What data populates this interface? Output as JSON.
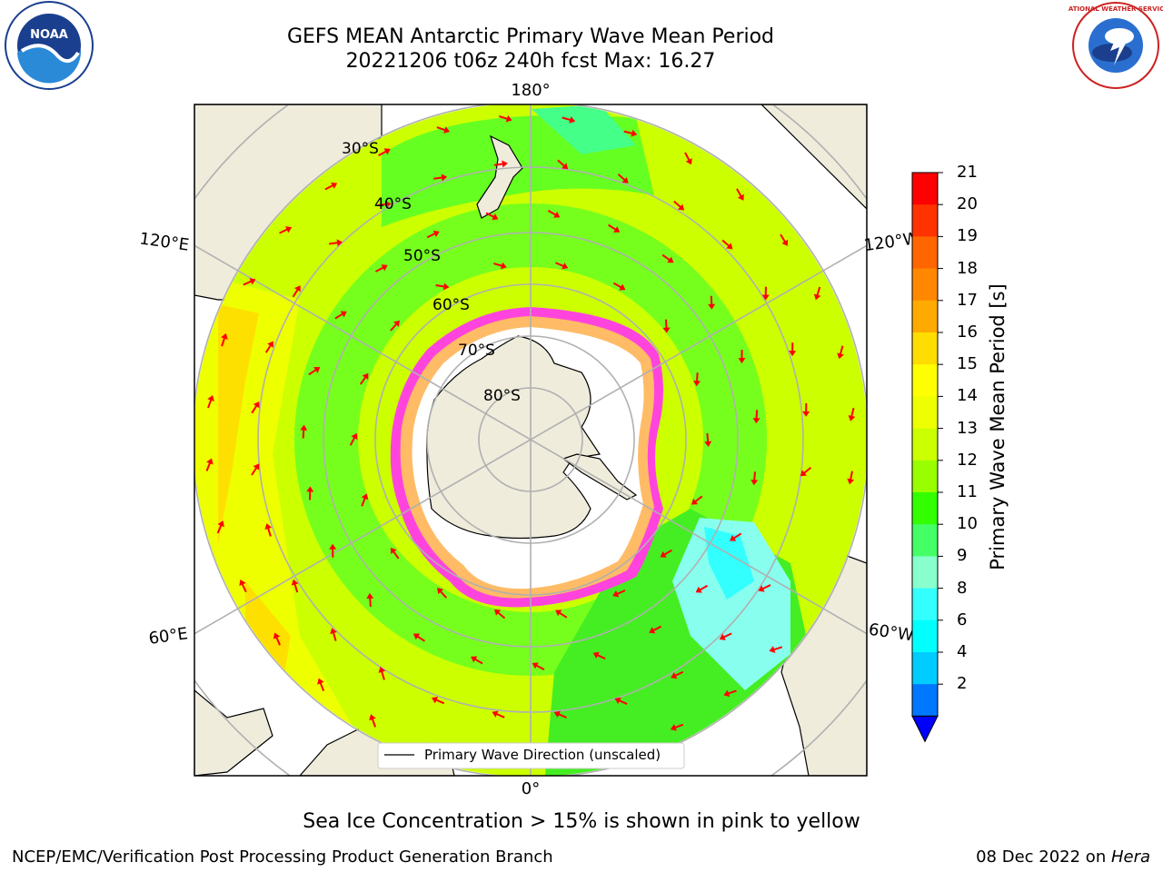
{
  "header": {
    "title_line1": "GEFS MEAN Antarctic Primary Wave Mean Period",
    "title_line2": "20221206 t06z 240h fcst   Max: 16.27"
  },
  "map": {
    "longitude_labels": [
      "180°",
      "120°E",
      "120°W",
      "60°E",
      "60°W",
      "0°"
    ],
    "latitude_labels": [
      "30°S",
      "40°S",
      "50°S",
      "60°S",
      "70°S",
      "80°S"
    ],
    "legend_label": "Primary Wave Direction (unscaled)",
    "land_color": "#efecdc",
    "ice_colors": [
      "#ff33cc",
      "#ffaa66",
      "#ffffff"
    ],
    "arrow_color": "#ff0000"
  },
  "colorbar": {
    "label": "Primary Wave Mean Period [s]",
    "ticks": [
      "21",
      "20",
      "19",
      "18",
      "17",
      "16",
      "15",
      "14",
      "13",
      "12",
      "11",
      "10",
      "9",
      "8",
      "6",
      "4",
      "2"
    ],
    "colors": [
      "#ff0000",
      "#ff3300",
      "#ff6600",
      "#ff8800",
      "#ffaa00",
      "#ffdd00",
      "#ffff00",
      "#eeff00",
      "#ccff00",
      "#99ff00",
      "#33ff00",
      "#44ff66",
      "#88ffcc",
      "#33ffff",
      "#00ffff",
      "#00ccff",
      "#0077ff"
    ],
    "under_color": "#0000ff"
  },
  "note": "Sea Ice Concentration > 15% is shown in pink to yellow",
  "footer": {
    "left": "NCEP/EMC/Verification Post Processing Product Generation Branch",
    "date": "08 Dec 2022 on ",
    "host": "Hera"
  },
  "logos": {
    "noaa_text": "NOAA",
    "nws_text": "NATIONAL WEATHER SERVICE"
  }
}
